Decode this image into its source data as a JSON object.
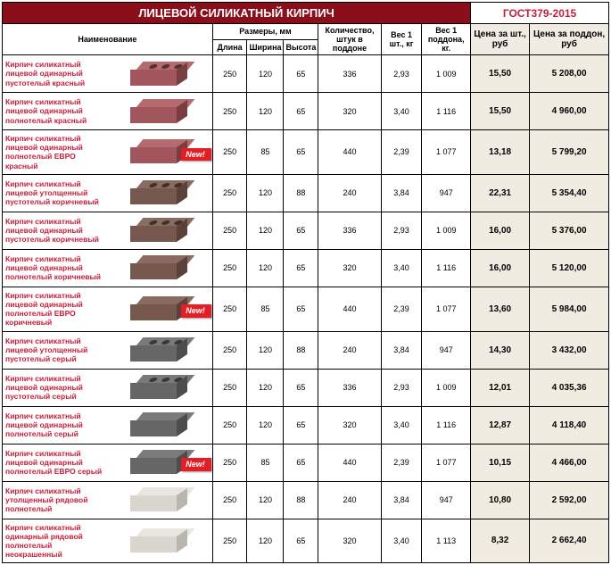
{
  "title": "ЛИЦЕВОЙ СИЛИКАТНЫЙ КИРПИЧ",
  "gost": "ГОСТ379-2015",
  "headers": {
    "name": "Наименование",
    "dims": "Размеры, мм",
    "dlina": "Длина",
    "shirina": "Ширина",
    "vysota": "Высота",
    "qty": "Количество, штук в поддоне",
    "weight1": "Вес 1 шт., кг",
    "weightP": "Вес 1 поддона, кг.",
    "priceU": "Цена за шт., руб",
    "priceP": "Цена за поддон, руб"
  },
  "new_label": "New!",
  "colors": {
    "red_top": "#b56a6e",
    "red_front": "#a0565c",
    "red_side": "#7a3e42",
    "brown_top": "#8a6b60",
    "brown_front": "#76584f",
    "brown_side": "#5a413a",
    "grey_top": "#7a7a7a",
    "grey_front": "#666666",
    "grey_side": "#4d4d4d",
    "light_top": "#e8e6df",
    "light_front": "#d8d6cf",
    "light_side": "#b8b6af"
  },
  "rows": [
    {
      "name": "Кирпич силикатный лицевой одинарный пустотелый красный",
      "color": "red",
      "holes": true,
      "new": false,
      "d": "250",
      "s": "120",
      "v": "65",
      "qty": "336",
      "w1": "2,93",
      "wp": "1 009",
      "pu": "15,50",
      "pp": "5 208,00"
    },
    {
      "name": "Кирпич силикатный лицевой одинарный полнотелый красный",
      "color": "red",
      "holes": false,
      "new": false,
      "d": "250",
      "s": "120",
      "v": "65",
      "qty": "320",
      "w1": "3,40",
      "wp": "1 116",
      "pu": "15,50",
      "pp": "4 960,00"
    },
    {
      "name": "Кирпич силикатный лицевой одинарный полнотелый ЕВРО красный",
      "color": "red",
      "holes": false,
      "new": true,
      "d": "250",
      "s": "85",
      "v": "65",
      "qty": "440",
      "w1": "2,39",
      "wp": "1 077",
      "pu": "13,18",
      "pp": "5 799,20"
    },
    {
      "name": "Кирпич силикатный лицевой утолщенный пустотелый коричневый",
      "color": "brown",
      "holes": true,
      "new": false,
      "d": "250",
      "s": "120",
      "v": "88",
      "qty": "240",
      "w1": "3,84",
      "wp": "947",
      "pu": "22,31",
      "pp": "5 354,40"
    },
    {
      "name": "Кирпич силикатный лицевой одинарный пустотелый коричневый",
      "color": "brown",
      "holes": true,
      "new": false,
      "d": "250",
      "s": "120",
      "v": "65",
      "qty": "336",
      "w1": "2,93",
      "wp": "1 009",
      "pu": "16,00",
      "pp": "5 376,00"
    },
    {
      "name": "Кирпич силикатный лицевой одинарный полнотелый коричневый",
      "color": "brown",
      "holes": false,
      "new": false,
      "d": "250",
      "s": "120",
      "v": "65",
      "qty": "320",
      "w1": "3,40",
      "wp": "1 116",
      "pu": "16,00",
      "pp": "5 120,00"
    },
    {
      "name": "Кирпич силикатный лицевой одинарный полнотелый ЕВРО коричневый",
      "color": "brown",
      "holes": false,
      "new": true,
      "d": "250",
      "s": "85",
      "v": "65",
      "qty": "440",
      "w1": "2,39",
      "wp": "1 077",
      "pu": "13,60",
      "pp": "5 984,00"
    },
    {
      "name": "Кирпич силикатный лицевой утолщенный пустотелый серый",
      "color": "grey",
      "holes": true,
      "new": false,
      "d": "250",
      "s": "120",
      "v": "88",
      "qty": "240",
      "w1": "3,84",
      "wp": "947",
      "pu": "14,30",
      "pp": "3 432,00"
    },
    {
      "name": "Кирпич силикатный лицевой одинарный пустотелый серый",
      "color": "grey",
      "holes": true,
      "new": false,
      "d": "250",
      "s": "120",
      "v": "65",
      "qty": "336",
      "w1": "2,93",
      "wp": "1 009",
      "pu": "12,01",
      "pp": "4 035,36"
    },
    {
      "name": "Кирпич силикатный лицевой одинарный полнотелый серый",
      "color": "grey",
      "holes": false,
      "new": false,
      "d": "250",
      "s": "120",
      "v": "65",
      "qty": "320",
      "w1": "3,40",
      "wp": "1 116",
      "pu": "12,87",
      "pp": "4 118,40"
    },
    {
      "name": "Кирпич силикатный лицевой одинарный полнотелый ЕВРО серый",
      "color": "grey",
      "holes": false,
      "new": true,
      "d": "250",
      "s": "85",
      "v": "65",
      "qty": "440",
      "w1": "2,39",
      "wp": "1 077",
      "pu": "10,15",
      "pp": "4 466,00"
    },
    {
      "name": "Кирпич силикатный утолщенный рядовой полнотелый",
      "color": "light",
      "holes": false,
      "new": false,
      "d": "250",
      "s": "120",
      "v": "88",
      "qty": "240",
      "w1": "3,84",
      "wp": "947",
      "pu": "10,80",
      "pp": "2 592,00"
    },
    {
      "name": "Кирпич силикатный одинарный рядовой полнотелый неокрашенный",
      "color": "light",
      "holes": false,
      "new": false,
      "d": "250",
      "s": "120",
      "v": "65",
      "qty": "320",
      "w1": "3,40",
      "wp": "1 113",
      "pu": "8,32",
      "pp": "2 662,40"
    }
  ],
  "col_widths": {
    "name": 207,
    "d": 34,
    "s": 36,
    "v": 34,
    "qty": 62,
    "w1": 40,
    "wp": 48,
    "pu": 58,
    "pp": 78
  }
}
